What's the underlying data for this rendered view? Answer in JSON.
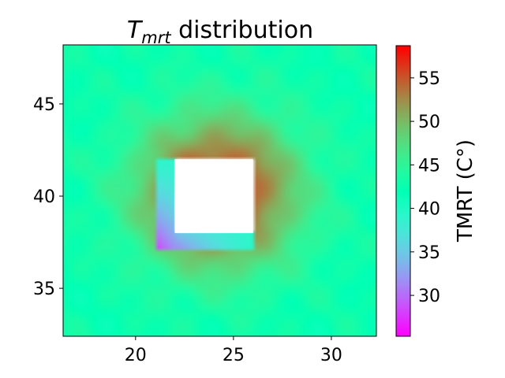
{
  "chart_data": {
    "type": "heatmap",
    "title": {
      "symbol": "T",
      "subscript": "mrt",
      "rest": " distribution"
    },
    "xlabel": "",
    "ylabel": "",
    "xlim": [
      16.3,
      32.3
    ],
    "ylim": [
      32.4,
      48.2
    ],
    "xticks": [
      20,
      25,
      30
    ],
    "yticks": [
      35,
      40,
      45
    ],
    "colorbar": {
      "label": "TMRT (C°)",
      "range": [
        25.3,
        58.7
      ],
      "ticks": [
        30,
        35,
        40,
        45,
        50,
        55
      ],
      "colormap": "rainbow"
    },
    "field": {
      "background_value": 42.5,
      "hot_center": [
        24.2,
        40.2
      ],
      "hot_peak": 56.5,
      "hot_radius": 4.2,
      "building": {
        "x": [
          22.0,
          26.0
        ],
        "y": [
          38.0,
          42.0
        ]
      },
      "shadow": {
        "x_left": 21.0,
        "y_bottom": 37.0,
        "coolest_value": 27.5,
        "edge_value": 39.0
      }
    },
    "grid": false
  }
}
